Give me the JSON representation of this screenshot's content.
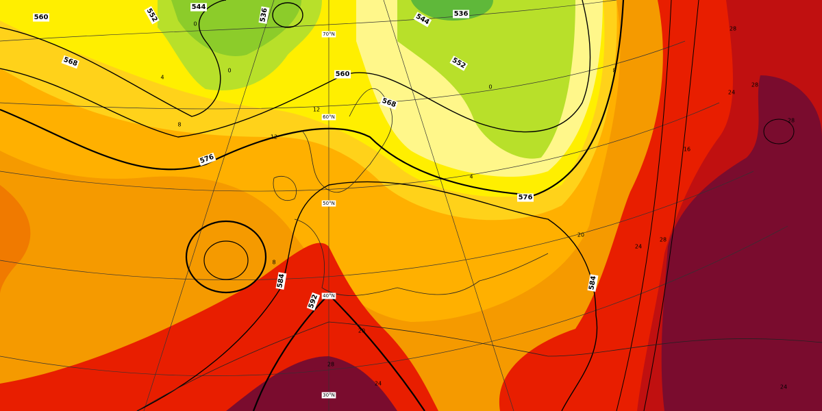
{
  "map": {
    "geopotential_labels": [
      560,
      568,
      552,
      544,
      536,
      560,
      568,
      576,
      576,
      584,
      592,
      584,
      544,
      536,
      552
    ],
    "temperature_labels": [
      0,
      0,
      4,
      8,
      12,
      12,
      4,
      0,
      8,
      16,
      20,
      24,
      28,
      28,
      28,
      24,
      28,
      20,
      28,
      24,
      24,
      8
    ],
    "latitude_labels": [
      "70°N",
      "60°N",
      "50°N",
      "40°N",
      "30°N"
    ]
  }
}
